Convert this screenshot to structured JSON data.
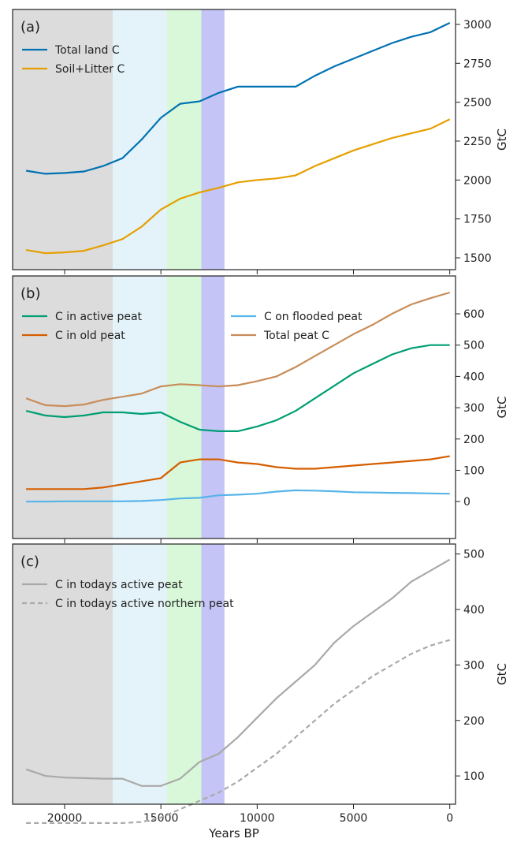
{
  "chart_data": [
    {
      "type": "line",
      "annotation": "(a)",
      "ylabel": "GtC",
      "x": [
        22000,
        21000,
        20000,
        19000,
        18000,
        17000,
        16000,
        15000,
        14000,
        13000,
        12000,
        11000,
        10000,
        9000,
        8000,
        7000,
        6000,
        5000,
        4000,
        3000,
        2000,
        1000,
        0
      ],
      "series": [
        {
          "name": "Total land C",
          "color": "#0072b2",
          "linestyle": "solid",
          "values": [
            2060,
            2040,
            2045,
            2055,
            2090,
            2140,
            2260,
            2400,
            2490,
            2505,
            2560,
            2600,
            2600,
            2600,
            2600,
            2670,
            2730,
            2780,
            2830,
            2880,
            2920,
            2950,
            3010
          ]
        },
        {
          "name": "Soil+Litter C",
          "color": "#e69f00",
          "linestyle": "solid",
          "values": [
            1550,
            1530,
            1535,
            1545,
            1580,
            1620,
            1700,
            1810,
            1880,
            1920,
            1950,
            1985,
            2000,
            2010,
            2030,
            2090,
            2140,
            2190,
            2230,
            2270,
            2300,
            2330,
            2390
          ]
        }
      ],
      "xlim": [
        22700,
        -300
      ],
      "xticks": [
        20000,
        15000,
        10000,
        5000,
        0
      ],
      "show_xtick_labels": false,
      "ylim": [
        1424,
        3096
      ],
      "yticks": [
        1500,
        1750,
        2000,
        2250,
        2500,
        2750,
        3000
      ],
      "legend": "upper left",
      "legend_columns": 1,
      "spans": [
        {
          "x0": 22700,
          "x1": 17500,
          "color": "#dcdcdc"
        },
        {
          "x0": 17500,
          "x1": 14700,
          "color": "#e4f3fa"
        },
        {
          "x0": 14700,
          "x1": 12900,
          "color": "#d9f8d9"
        },
        {
          "x0": 12900,
          "x1": 11700,
          "color": "#c4c4f7"
        }
      ]
    },
    {
      "type": "line",
      "annotation": "(b)",
      "ylabel": "GtC",
      "x": [
        22000,
        21000,
        20000,
        19000,
        18000,
        17000,
        16000,
        15000,
        14000,
        13000,
        12000,
        11000,
        10000,
        9000,
        8000,
        7000,
        6000,
        5000,
        4000,
        3000,
        2000,
        1000,
        0
      ],
      "series": [
        {
          "name": "C in active peat",
          "color": "#009e73",
          "linestyle": "solid",
          "values": [
            290,
            275,
            270,
            275,
            285,
            285,
            280,
            285,
            255,
            230,
            225,
            225,
            240,
            260,
            290,
            330,
            370,
            410,
            440,
            470,
            490,
            500,
            500
          ]
        },
        {
          "name": "C on flooded peat",
          "color": "#56b4e9",
          "linestyle": "solid",
          "values": [
            0,
            0,
            1,
            1,
            1,
            1,
            2,
            5,
            10,
            12,
            20,
            22,
            25,
            32,
            36,
            35,
            33,
            30,
            29,
            28,
            27,
            26,
            25
          ]
        },
        {
          "name": "C in old peat",
          "color": "#d55e00",
          "linestyle": "solid",
          "values": [
            40,
            40,
            40,
            40,
            45,
            55,
            65,
            75,
            125,
            135,
            135,
            125,
            120,
            110,
            105,
            105,
            110,
            115,
            120,
            125,
            130,
            135,
            145
          ]
        },
        {
          "name": "Total peat C",
          "color": "#c88d5a",
          "linestyle": "solid",
          "values": [
            330,
            308,
            305,
            310,
            325,
            335,
            345,
            368,
            375,
            372,
            368,
            372,
            385,
            400,
            430,
            465,
            500,
            535,
            565,
            600,
            630,
            650,
            668
          ]
        }
      ],
      "xlim": [
        22700,
        -300
      ],
      "xticks": [
        20000,
        15000,
        10000,
        5000,
        0
      ],
      "show_xtick_labels": false,
      "ylim": [
        -118,
        721
      ],
      "yticks": [
        0,
        100,
        200,
        300,
        400,
        500,
        600
      ],
      "legend": "upper left",
      "legend_columns": 2,
      "spans": [
        {
          "x0": 22700,
          "x1": 17500,
          "color": "#dcdcdc"
        },
        {
          "x0": 17500,
          "x1": 14700,
          "color": "#e4f3fa"
        },
        {
          "x0": 14700,
          "x1": 12900,
          "color": "#d9f8d9"
        },
        {
          "x0": 12900,
          "x1": 11700,
          "color": "#c4c4f7"
        }
      ]
    },
    {
      "type": "line",
      "annotation": "(c)",
      "ylabel": "GtC",
      "xlabel": "Years BP",
      "x": [
        22000,
        21000,
        20000,
        19000,
        18000,
        17000,
        16000,
        15000,
        14000,
        13000,
        12000,
        11000,
        10000,
        9000,
        8000,
        7000,
        6000,
        5000,
        4000,
        3000,
        2000,
        1000,
        0
      ],
      "series": [
        {
          "name": "C in todays active peat",
          "color": "#a9a9a9",
          "linestyle": "solid",
          "values": [
            112,
            100,
            97,
            96,
            95,
            95,
            82,
            82,
            95,
            125,
            140,
            170,
            205,
            240,
            270,
            300,
            340,
            370,
            395,
            420,
            450,
            470,
            490
          ]
        },
        {
          "name": "C in todays active northern peat",
          "color": "#a9a9a9",
          "linestyle": "dashed",
          "values": [
            15,
            15,
            15,
            15,
            15,
            15,
            17,
            25,
            40,
            55,
            70,
            90,
            115,
            140,
            170,
            200,
            230,
            255,
            280,
            300,
            320,
            335,
            345
          ]
        }
      ],
      "xlim": [
        22700,
        -300
      ],
      "xticks": [
        20000,
        15000,
        10000,
        5000,
        0
      ],
      "show_xtick_labels": true,
      "ylim": [
        49,
        518
      ],
      "yticks": [
        100,
        200,
        300,
        400,
        500
      ],
      "legend": "upper left",
      "legend_columns": 1,
      "spans": [
        {
          "x0": 22700,
          "x1": 17500,
          "color": "#dcdcdc"
        },
        {
          "x0": 17500,
          "x1": 14700,
          "color": "#e4f3fa"
        },
        {
          "x0": 14700,
          "x1": 12900,
          "color": "#d9f8d9"
        },
        {
          "x0": 12900,
          "x1": 11700,
          "color": "#c4c4f7"
        }
      ]
    }
  ]
}
